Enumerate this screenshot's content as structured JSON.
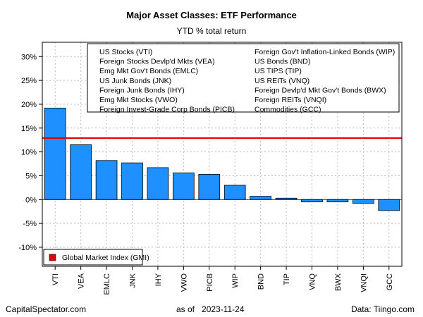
{
  "title": "Major Asset Classes: ETF Performance",
  "subtitle": "YTD % total return",
  "footer": {
    "left": "CapitalSpectator.com",
    "center_prefix": "as of",
    "center_date": "2023-11-24",
    "right": "Data: Tiingo.com"
  },
  "colors": {
    "bar": "#1e90ff",
    "gmi_line": "#e00000",
    "grid": "#bbbbbb"
  },
  "chart_data": {
    "type": "bar",
    "title": "Major Asset Classes: ETF Performance",
    "subtitle": "YTD % total return",
    "categories": [
      "VTI",
      "VEA",
      "EMLC",
      "JNK",
      "IHY",
      "VWO",
      "PICB",
      "WIP",
      "BND",
      "TIP",
      "VNQ",
      "BWX",
      "VNQI",
      "GCC"
    ],
    "values": [
      19.2,
      11.5,
      8.2,
      7.7,
      6.7,
      5.6,
      5.3,
      3.0,
      0.7,
      0.3,
      -0.5,
      -0.5,
      -0.8,
      -2.3
    ],
    "ylim": [
      -14,
      33
    ],
    "yticks": [
      -10,
      -5,
      0,
      5,
      10,
      15,
      20,
      25,
      30
    ],
    "ytick_labels": [
      "-10%",
      "-5%",
      "0%",
      "5%",
      "10%",
      "15%",
      "20%",
      "25%",
      "30%"
    ],
    "reference_line": {
      "name": "Global Market Index (GMI)",
      "value": 12.9
    },
    "grid": true,
    "legend_columns": [
      [
        "US Stocks (VTI)",
        "Foreign Stocks Devlp'd Mkts (VEA)",
        "Emg Mkt Gov't Bonds (EMLC)",
        "US Junk Bonds (JNK)",
        "Foreign Junk Bonds (IHY)",
        "Emg Mkt Stocks (VWO)",
        "Foreign Invest-Grade Corp Bonds (PICB)"
      ],
      [
        "Foreign Gov't Inflation-Linked Bonds (WIP)",
        "US Bonds (BND)",
        "US TIPS (TIP)",
        "US REITs (VNQ)",
        "Foreign Devlp'd Mkt Gov't Bonds (BWX)",
        "Foreign REITs (VNQI)",
        "Commodities (GCC)"
      ]
    ],
    "legend_position": "top-right",
    "gmi_legend_position": "bottom-left"
  }
}
